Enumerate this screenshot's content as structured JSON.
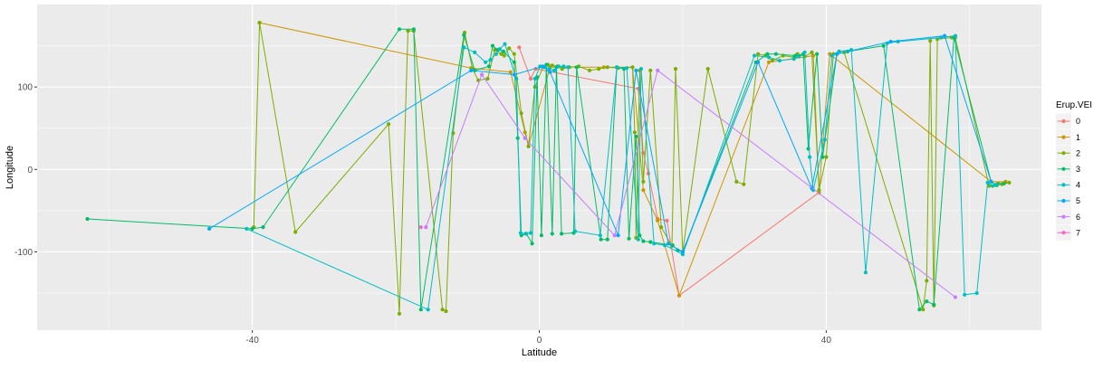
{
  "chart_data": {
    "type": "line",
    "title": "",
    "xlabel": "Latitude",
    "ylabel": "Longitude",
    "xlim": [
      -70,
      70
    ],
    "ylim": [
      -195,
      200
    ],
    "x_ticks": [
      -40,
      0,
      40
    ],
    "y_ticks": [
      -100,
      0,
      100
    ],
    "grid": true,
    "legend": {
      "title": "Erup.VEI",
      "position": "right",
      "entries": [
        "0",
        "1",
        "2",
        "3",
        "4",
        "5",
        "6",
        "7"
      ]
    },
    "series": [
      {
        "name": "0",
        "color": "#F8766D",
        "points": [
          [
            -2.8,
            148
          ],
          [
            -1.2,
            110
          ],
          [
            -0.5,
            122
          ],
          [
            13.8,
            98
          ],
          [
            14.5,
            20
          ],
          [
            15.2,
            -5
          ],
          [
            16.5,
            -60
          ],
          [
            17.8,
            -62
          ],
          [
            19.5,
            -153
          ],
          [
            39,
            -28
          ]
        ]
      },
      {
        "name": "1",
        "color": "#CD9600",
        "points": [
          [
            -39,
            178
          ],
          [
            -9.5,
            123
          ],
          [
            -4,
            118
          ],
          [
            -2,
            45
          ],
          [
            -1.5,
            28
          ],
          [
            1.5,
            124
          ],
          [
            9,
            124
          ],
          [
            13,
            124
          ],
          [
            14.5,
            -25
          ],
          [
            16.5,
            -62
          ],
          [
            19.5,
            -153
          ],
          [
            32,
            130
          ],
          [
            38.2,
            138
          ],
          [
            39,
            -28
          ],
          [
            40.5,
            140
          ],
          [
            63,
            -15
          ],
          [
            65,
            -15
          ]
        ]
      },
      {
        "name": "2",
        "color": "#7CAE00",
        "points": [
          [
            -39.8,
            -70
          ],
          [
            -39,
            178
          ],
          [
            -34,
            -76
          ],
          [
            -21,
            55
          ],
          [
            -19.5,
            -175
          ],
          [
            -18.3,
            168
          ],
          [
            -17.5,
            168
          ],
          [
            -13.5,
            -170
          ],
          [
            -13,
            -172
          ],
          [
            -12,
            44
          ],
          [
            -10.4,
            166
          ],
          [
            -9.3,
            122
          ],
          [
            -8.5,
            108
          ],
          [
            -7.2,
            110
          ],
          [
            -6.2,
            145
          ],
          [
            -5.3,
            140
          ],
          [
            -4.9,
            138
          ],
          [
            -4.2,
            147
          ],
          [
            -3.5,
            140
          ],
          [
            -2.5,
            68
          ],
          [
            -1.5,
            28
          ],
          [
            -0.6,
            100
          ],
          [
            0.5,
            124
          ],
          [
            1.2,
            127
          ],
          [
            1.8,
            126
          ],
          [
            2.5,
            125
          ],
          [
            3.2,
            122
          ],
          [
            4.2,
            124
          ],
          [
            5.5,
            125
          ],
          [
            7,
            120
          ],
          [
            8.3,
            122
          ],
          [
            9.5,
            124
          ],
          [
            11,
            123
          ],
          [
            13,
            124
          ],
          [
            13.3,
            45
          ],
          [
            13.5,
            -83
          ],
          [
            14,
            120
          ],
          [
            14.5,
            -15
          ],
          [
            15.5,
            120
          ],
          [
            17,
            -70
          ],
          [
            18.5,
            -93
          ],
          [
            19,
            122
          ],
          [
            20,
            -100
          ],
          [
            23.5,
            122
          ],
          [
            27.5,
            -15
          ],
          [
            28.5,
            -18
          ],
          [
            30.5,
            140
          ],
          [
            31.5,
            138
          ],
          [
            32.5,
            132
          ],
          [
            34,
            138
          ],
          [
            35.5,
            136
          ],
          [
            36,
            140
          ],
          [
            37,
            137
          ],
          [
            38,
            142
          ],
          [
            39,
            -25
          ],
          [
            40,
            15
          ],
          [
            41,
            140
          ],
          [
            42.5,
            142
          ],
          [
            53.5,
            -170
          ],
          [
            54,
            -135
          ],
          [
            54.5,
            156
          ],
          [
            55,
            -165
          ],
          [
            55.5,
            158
          ],
          [
            57.5,
            160
          ],
          [
            58,
            160
          ],
          [
            62.7,
            -20
          ],
          [
            63.6,
            -19
          ],
          [
            64,
            -17
          ],
          [
            64.5,
            -18
          ],
          [
            65.5,
            -16
          ]
        ]
      },
      {
        "name": "3",
        "color": "#00BE67",
        "points": [
          [
            -63,
            -60
          ],
          [
            -40,
            -72
          ],
          [
            -38.5,
            -70
          ],
          [
            -19.5,
            170
          ],
          [
            -17.5,
            170
          ],
          [
            -16.5,
            -170
          ],
          [
            -10.5,
            163
          ],
          [
            -9,
            120
          ],
          [
            -7,
            125
          ],
          [
            -6.5,
            150
          ],
          [
            -5.8,
            145
          ],
          [
            -5,
            143
          ],
          [
            -3.5,
            130
          ],
          [
            -3,
            38
          ],
          [
            -2.5,
            -80
          ],
          [
            -1.8,
            -78
          ],
          [
            -1,
            -90
          ],
          [
            -0.3,
            112
          ],
          [
            0.3,
            -80
          ],
          [
            1,
            127
          ],
          [
            1.8,
            -78
          ],
          [
            2.4,
            124
          ],
          [
            3.1,
            -78
          ],
          [
            4.8,
            -77
          ],
          [
            5.2,
            124
          ],
          [
            8.6,
            -85
          ],
          [
            9.5,
            -85
          ],
          [
            10.8,
            124
          ],
          [
            11.8,
            122
          ],
          [
            12.5,
            -84
          ],
          [
            13.5,
            40
          ],
          [
            14,
            -80
          ],
          [
            14.5,
            -87
          ],
          [
            15.5,
            -88
          ],
          [
            18.6,
            -92
          ],
          [
            19.3,
            -98
          ],
          [
            20,
            -100
          ],
          [
            30.2,
            130
          ],
          [
            31.8,
            140
          ],
          [
            33,
            140
          ],
          [
            35.7,
            138
          ],
          [
            36.8,
            140
          ],
          [
            37.5,
            25
          ],
          [
            38.7,
            140
          ],
          [
            39.5,
            15
          ],
          [
            41.5,
            140
          ],
          [
            43,
            143
          ],
          [
            48,
            150
          ],
          [
            53,
            -170
          ],
          [
            54,
            -160
          ],
          [
            55,
            -164
          ],
          [
            57.8,
            160
          ],
          [
            63,
            -15
          ],
          [
            63.8,
            -19
          ],
          [
            64.8,
            -17
          ]
        ]
      },
      {
        "name": "4",
        "color": "#00BFC4",
        "points": [
          [
            -40.8,
            -72
          ],
          [
            -15.5,
            -170
          ],
          [
            -10.5,
            148
          ],
          [
            -9,
            142
          ],
          [
            -7.5,
            130
          ],
          [
            -6.8,
            133
          ],
          [
            -6,
            140
          ],
          [
            -5.5,
            146
          ],
          [
            -4.8,
            152
          ],
          [
            -3.2,
            110
          ],
          [
            -2.6,
            -77
          ],
          [
            -1.9,
            -78
          ],
          [
            -1.2,
            -77
          ],
          [
            -0.6,
            110
          ],
          [
            0.1,
            125
          ],
          [
            0.8,
            124
          ],
          [
            1.4,
            122
          ],
          [
            2.1,
            120
          ],
          [
            2.7,
            125
          ],
          [
            3.4,
            125
          ],
          [
            4,
            124
          ],
          [
            5,
            -75
          ],
          [
            8.5,
            -80
          ],
          [
            10.8,
            124
          ],
          [
            12.2,
            123
          ],
          [
            13.8,
            -85
          ],
          [
            14.2,
            122
          ],
          [
            16,
            -90
          ],
          [
            17.5,
            -92
          ],
          [
            20,
            -103
          ],
          [
            30,
            138
          ],
          [
            32,
            136
          ],
          [
            33.5,
            132
          ],
          [
            35.5,
            134
          ],
          [
            36.2,
            137
          ],
          [
            37,
            142
          ],
          [
            37.7,
            15
          ],
          [
            38.2,
            -25
          ],
          [
            39.8,
            36
          ],
          [
            40.8,
            138
          ],
          [
            41.8,
            143
          ],
          [
            43.5,
            145
          ],
          [
            45.5,
            -125
          ],
          [
            48.5,
            153
          ],
          [
            50,
            155
          ],
          [
            56,
            160
          ],
          [
            58,
            162
          ],
          [
            59.3,
            -152
          ],
          [
            61,
            -150
          ],
          [
            62.5,
            -16
          ],
          [
            63.2,
            -20
          ],
          [
            63.8,
            -18
          ]
        ]
      },
      {
        "name": "5",
        "color": "#00A9FF",
        "points": [
          [
            -46,
            -72
          ],
          [
            -9.5,
            120
          ],
          [
            -3.5,
            115
          ],
          [
            0.5,
            125
          ],
          [
            1.5,
            118
          ],
          [
            11,
            -80
          ],
          [
            13.5,
            120
          ],
          [
            18,
            -90
          ],
          [
            20,
            -100
          ],
          [
            30.5,
            130
          ],
          [
            38,
            -23
          ],
          [
            41.5,
            140
          ],
          [
            49,
            155
          ],
          [
            56.5,
            162
          ],
          [
            63,
            -15
          ]
        ]
      },
      {
        "name": "6",
        "color": "#C77CFF",
        "points": [
          [
            -15.8,
            -70
          ],
          [
            -8,
            115
          ],
          [
            -2,
            38
          ],
          [
            10.5,
            -80
          ],
          [
            16.5,
            120
          ],
          [
            58,
            -155
          ]
        ]
      },
      {
        "name": "7",
        "color": "#FF61CC",
        "points": [
          [
            -16.5,
            -70
          ]
        ]
      }
    ]
  }
}
